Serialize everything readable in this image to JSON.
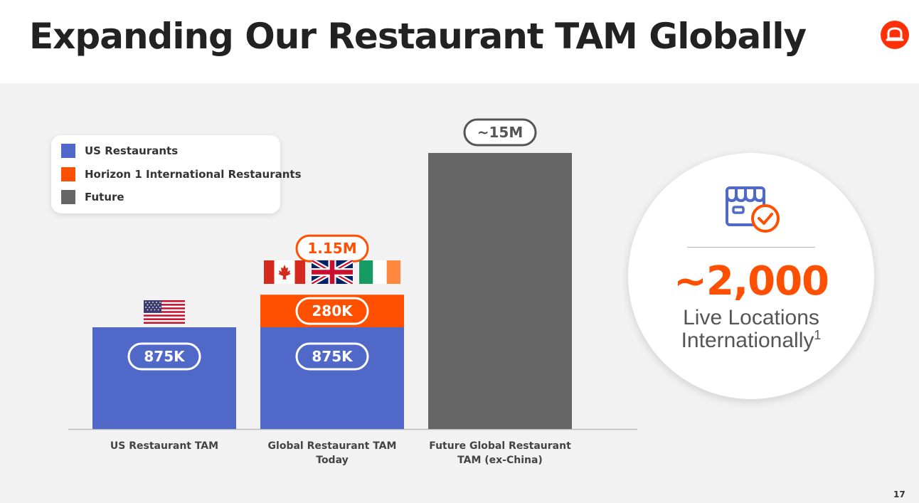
{
  "title": "Expanding Our Restaurant TAM Globally",
  "page_number": "17",
  "colors": {
    "us": "#5068c8",
    "horizon": "#ff4f00",
    "future": "#666666",
    "accent": "#ff4f00"
  },
  "legend": [
    {
      "label": "US Restaurants",
      "color": "#5068c8"
    },
    {
      "label": "Horizon 1 International Restaurants",
      "color": "#ff4f00"
    },
    {
      "label": "Future",
      "color": "#666666"
    }
  ],
  "chart_data": {
    "type": "bar",
    "stacked": true,
    "categories": [
      "US Restaurant TAM",
      "Global Restaurant TAM\nToday",
      "Future Global Restaurant\nTAM (ex-China)"
    ],
    "series": [
      {
        "name": "US Restaurants",
        "values": [
          875000,
          875000,
          0
        ],
        "labels": [
          "875K",
          "875K",
          ""
        ],
        "color": "#5068c8"
      },
      {
        "name": "Horizon 1 International Restaurants",
        "values": [
          0,
          280000,
          0
        ],
        "labels": [
          "",
          "280K",
          ""
        ],
        "color": "#ff4f00"
      },
      {
        "name": "Future",
        "values": [
          0,
          0,
          15000000
        ],
        "labels": [
          "",
          "",
          ""
        ],
        "color": "#666666"
      }
    ],
    "totals": [
      "",
      "1.15M",
      "~15M"
    ],
    "flags": [
      [
        "us-flag"
      ],
      [
        "canada-flag",
        "uk-flag",
        "ireland-flag"
      ],
      []
    ],
    "legend_position": "top-left",
    "grid": false,
    "axis_break": true
  },
  "stat": {
    "icon": "storefront-check-icon",
    "value": "~2,000",
    "line1": "Live Locations",
    "line2": "Internationally",
    "footnote_mark": "1"
  }
}
